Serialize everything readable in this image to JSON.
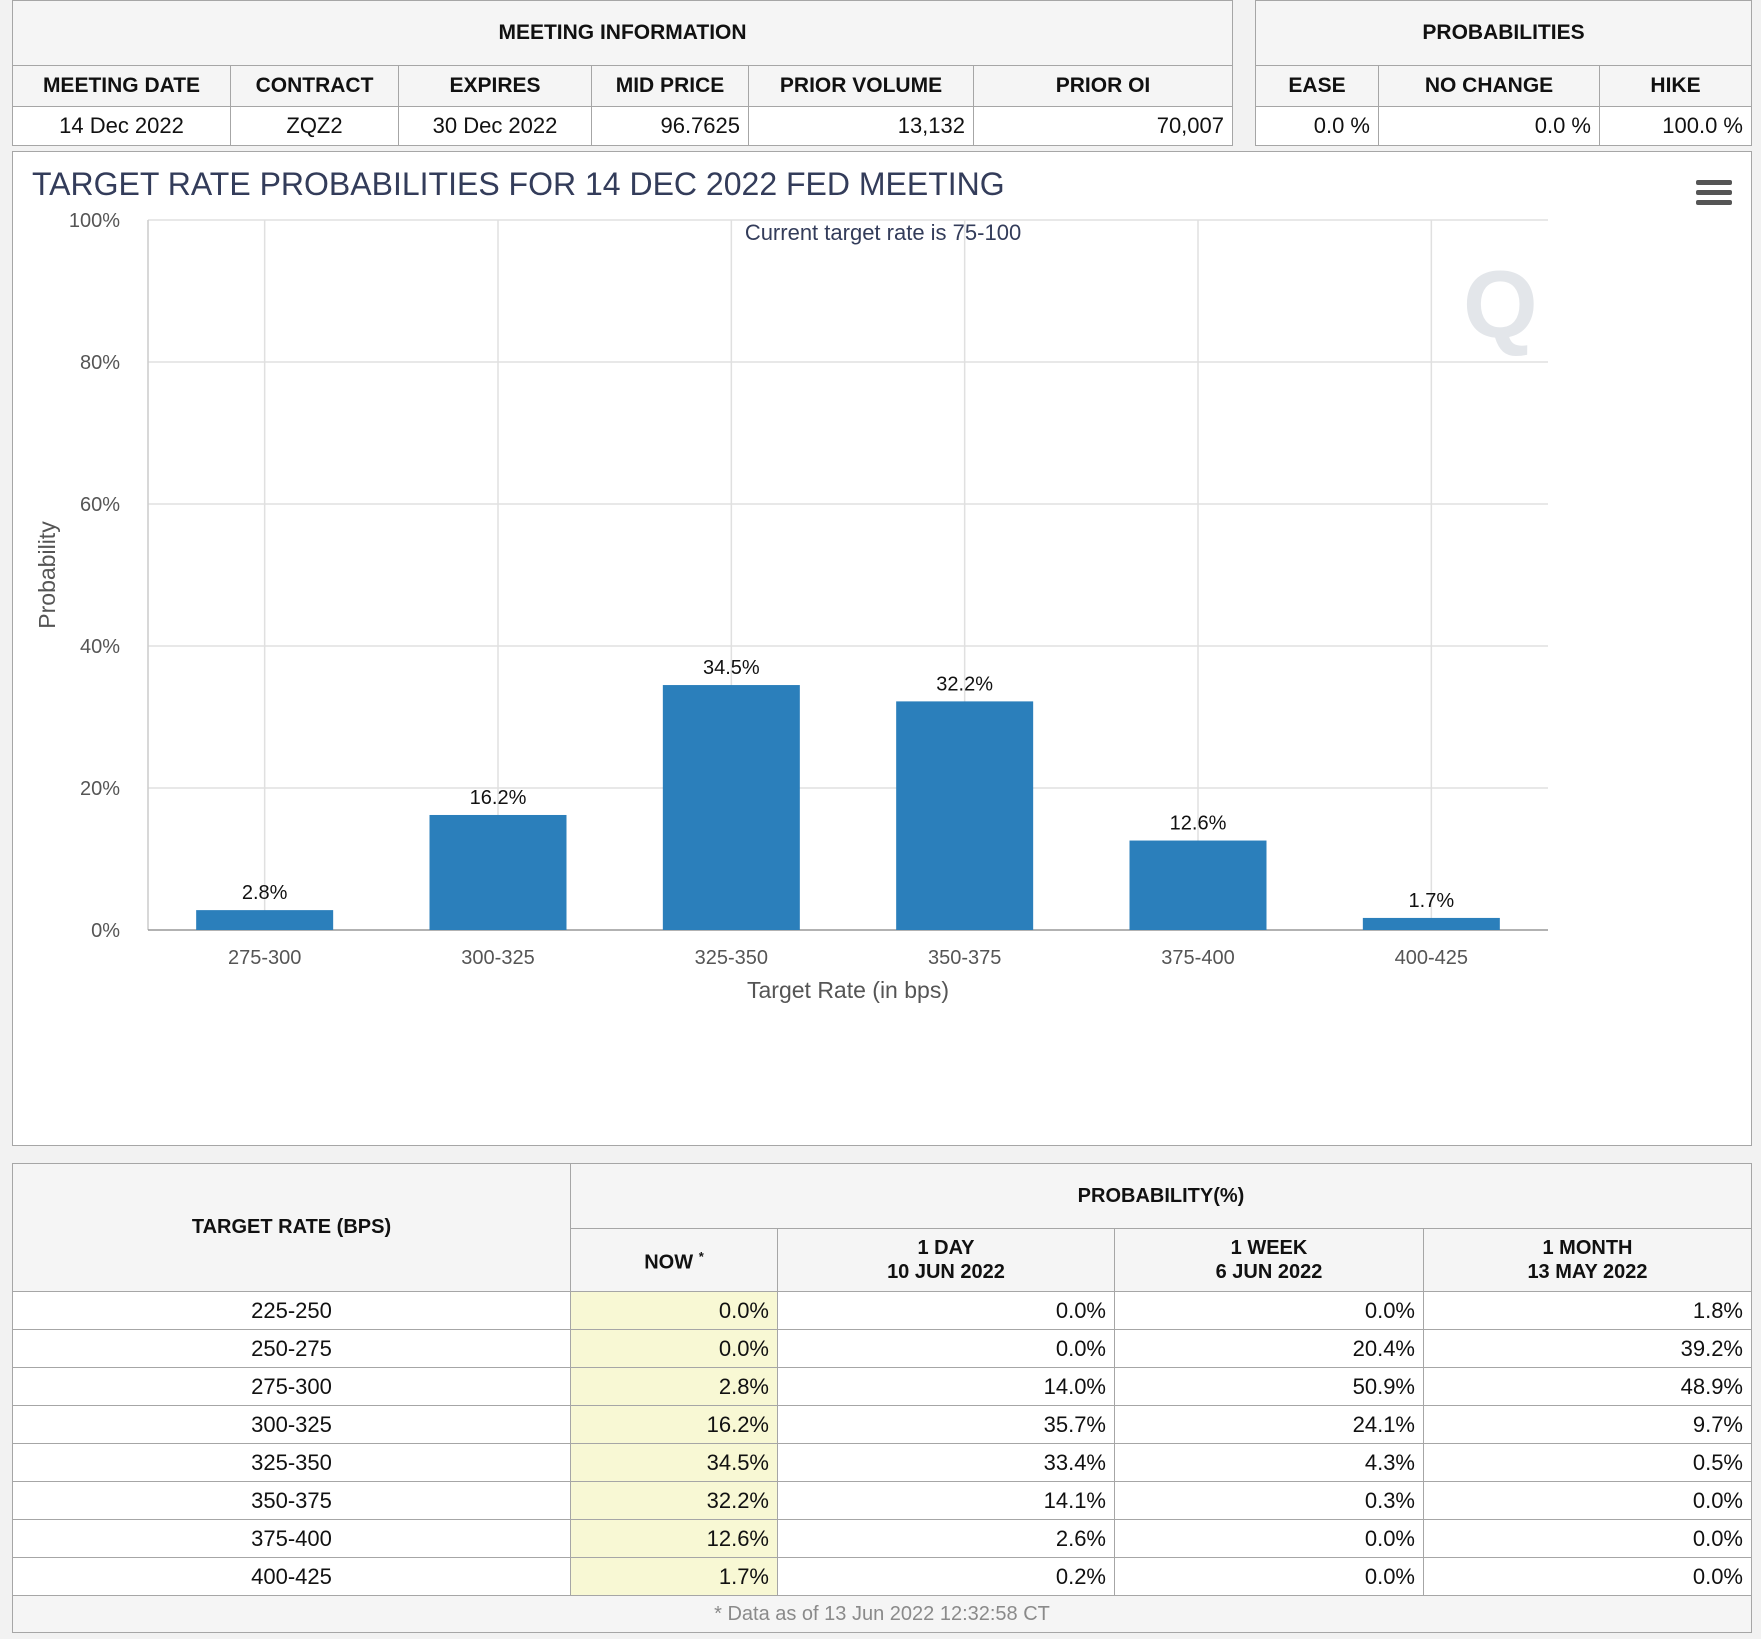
{
  "meeting_info": {
    "header": "MEETING INFORMATION",
    "columns": [
      "MEETING DATE",
      "CONTRACT",
      "EXPIRES",
      "MID PRICE",
      "PRIOR VOLUME",
      "PRIOR OI"
    ],
    "values": [
      "14 Dec 2022",
      "ZQZ2",
      "30 Dec 2022",
      "96.7625",
      "13,132",
      "70,007"
    ]
  },
  "probabilities": {
    "header": "PROBABILITIES",
    "columns": [
      "EASE",
      "NO CHANGE",
      "HIKE"
    ],
    "values": [
      "0.0 %",
      "0.0 %",
      "100.0 %"
    ]
  },
  "chart_data": {
    "type": "bar",
    "title": "TARGET RATE PROBABILITIES FOR 14 DEC 2022 FED MEETING",
    "subtitle": "Current target rate is 75-100",
    "xlabel": "Target Rate (in bps)",
    "ylabel": "Probability",
    "categories": [
      "275-300",
      "300-325",
      "325-350",
      "350-375",
      "375-400",
      "400-425"
    ],
    "values": [
      2.8,
      16.2,
      34.5,
      32.2,
      12.6,
      1.7
    ],
    "data_labels": [
      "2.8%",
      "16.2%",
      "34.5%",
      "32.2%",
      "12.6%",
      "1.7%"
    ],
    "yticks": [
      0,
      20,
      40,
      60,
      80,
      100
    ],
    "ytick_labels": [
      "0%",
      "20%",
      "40%",
      "60%",
      "80%",
      "100%"
    ],
    "ylim": [
      0,
      100
    ],
    "grid": true,
    "bar_color": "#2b7fbb"
  },
  "rate_table": {
    "target_header": "TARGET RATE (BPS)",
    "prob_header": "PROBABILITY(%)",
    "now_label": "NOW",
    "now_mark": "*",
    "col_1day": [
      "1 DAY",
      "10 JUN 2022"
    ],
    "col_1week": [
      "1 WEEK",
      "6 JUN 2022"
    ],
    "col_1month": [
      "1 MONTH",
      "13 MAY 2022"
    ],
    "rows": [
      [
        "225-250",
        "0.0%",
        "0.0%",
        "0.0%",
        "1.8%"
      ],
      [
        "250-275",
        "0.0%",
        "0.0%",
        "20.4%",
        "39.2%"
      ],
      [
        "275-300",
        "2.8%",
        "14.0%",
        "50.9%",
        "48.9%"
      ],
      [
        "300-325",
        "16.2%",
        "35.7%",
        "24.1%",
        "9.7%"
      ],
      [
        "325-350",
        "34.5%",
        "33.4%",
        "4.3%",
        "0.5%"
      ],
      [
        "350-375",
        "32.2%",
        "14.1%",
        "0.3%",
        "0.0%"
      ],
      [
        "375-400",
        "12.6%",
        "2.6%",
        "0.0%",
        "0.0%"
      ],
      [
        "400-425",
        "1.7%",
        "0.2%",
        "0.0%",
        "0.0%"
      ]
    ],
    "footnote": "* Data as of 13 Jun 2022 12:32:58 CT"
  },
  "icons": {
    "menu": "hamburger-menu-icon",
    "watermark": "q-logo-watermark"
  }
}
